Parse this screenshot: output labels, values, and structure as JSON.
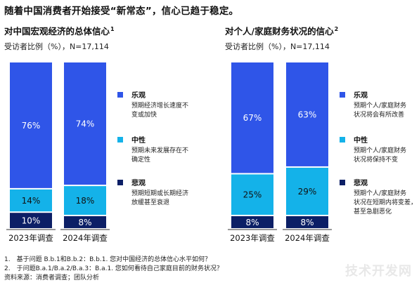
{
  "headline": "随着中国消费者开始接受“新常态”，信心已趋于稳定。",
  "colors": {
    "optimistic": "#2f55e8",
    "neutral": "#14b2e9",
    "pessimistic": "#0c1f66",
    "label_dark": "#111111",
    "label_light": "#ffffff"
  },
  "legend_items": [
    {
      "key": "optimistic",
      "label": "乐观",
      "desc_left": "预期经济增长速度不\n变或加快",
      "desc_right": "预期个人/家庭财务\n状况将会有所改善"
    },
    {
      "key": "neutral",
      "label": "中性",
      "desc_left": "预期未来发展存在不\n确定性",
      "desc_right": "预期个人/家庭财务\n状况将保持不变"
    },
    {
      "key": "pessimistic",
      "label": "悲观",
      "desc_left": "预期短期或长期经济\n放缓甚至衰退",
      "desc_right": "预期个人/家庭财务\n状况在短期内将变差，\n甚至急剧恶化"
    }
  ],
  "chart_data": [
    {
      "type": "bar",
      "stacked": true,
      "title": "对中国宏观经济的总体信心",
      "title_note": "1",
      "subtitle": "受访者比例（%），N=17,114",
      "categories": [
        "2023年调查",
        "2024年调查"
      ],
      "series": [
        {
          "name": "悲观",
          "key": "pessimistic",
          "values": [
            10,
            8
          ]
        },
        {
          "name": "中性",
          "key": "neutral",
          "values": [
            14,
            18
          ]
        },
        {
          "name": "乐观",
          "key": "optimistic",
          "values": [
            76,
            74
          ]
        }
      ],
      "data_labels": [
        [
          "10%",
          "8%"
        ],
        [
          "14%",
          "18%"
        ],
        [
          "76%",
          "74%"
        ]
      ],
      "ylim": [
        0,
        100
      ]
    },
    {
      "type": "bar",
      "stacked": true,
      "title": "对个人/家庭财务状况的信心",
      "title_note": "2",
      "subtitle": "受访者比例（%），N=17,114",
      "categories": [
        "2023年调查",
        "2024年调查"
      ],
      "series": [
        {
          "name": "悲观",
          "key": "pessimistic",
          "values": [
            8,
            8
          ]
        },
        {
          "name": "中性",
          "key": "neutral",
          "values": [
            25,
            29
          ]
        },
        {
          "name": "乐观",
          "key": "optimistic",
          "values": [
            67,
            63
          ]
        }
      ],
      "data_labels": [
        [
          "8%",
          "8%"
        ],
        [
          "25%",
          "29%"
        ],
        [
          "67%",
          "63%"
        ]
      ],
      "ylim": [
        0,
        100
      ]
    }
  ],
  "footnotes": [
    "1.　基于问题 B.b.1和B.b.2：B.b.1. 您对中国经济的总体信心水平如何？",
    "2.　于问题B.a.1/B.a.2/B.a.3：B.a.1. 您如何看待自己家庭目前的财务状况？",
    "资料来源：消费者调查；团队分析"
  ],
  "watermark": "技术开发网"
}
